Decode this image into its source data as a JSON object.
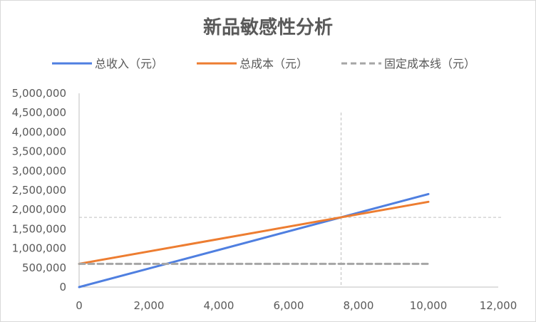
{
  "chart_data": {
    "type": "line",
    "title": "新品敏感性分析",
    "legend": {
      "position": "top",
      "entries": [
        {
          "name": "总收入（元）",
          "color": "#4f7fe0",
          "style": "solid"
        },
        {
          "name": "总成本（元）",
          "color": "#ed7d31",
          "style": "solid"
        },
        {
          "name": "固定成本线（元）",
          "color": "#a6a6a6",
          "style": "dashed"
        }
      ]
    },
    "xlim": [
      0,
      12000
    ],
    "ylim": [
      0,
      5000000
    ],
    "x_ticks": [
      "0",
      "2,000",
      "4,000",
      "6,000",
      "8,000",
      "10,000",
      "12,000"
    ],
    "y_ticks": [
      "0",
      "500,000",
      "1,000,000",
      "1,500,000",
      "2,000,000",
      "2,500,000",
      "3,000,000",
      "3,500,000",
      "4,000,000",
      "4,500,000",
      "5,000,000"
    ],
    "series": [
      {
        "name": "总收入（元）",
        "color": "#4f7fe0",
        "dashed": false,
        "x": [
          0,
          10000
        ],
        "y": [
          0,
          2400000
        ]
      },
      {
        "name": "总成本（元）",
        "color": "#ed7d31",
        "dashed": false,
        "x": [
          0,
          10000
        ],
        "y": [
          600000,
          2200000
        ]
      },
      {
        "name": "固定成本线（元）",
        "color": "#a6a6a6",
        "dashed": true,
        "x": [
          0,
          10000
        ],
        "y": [
          600000,
          600000
        ]
      }
    ],
    "break_even_guides": {
      "x": 7500,
      "y": 1800000,
      "color": "#bfbfbf"
    },
    "grid": false
  }
}
